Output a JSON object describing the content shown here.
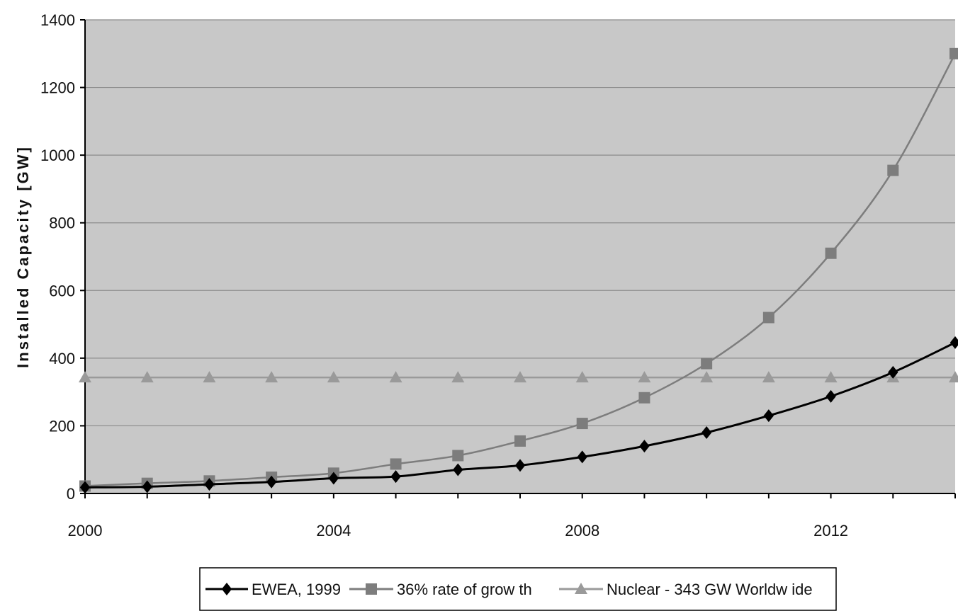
{
  "chart_data": {
    "type": "line",
    "title": "",
    "xlabel": "",
    "ylabel": "Installed Capacity [GW]",
    "x": [
      2000,
      2001,
      2002,
      2003,
      2004,
      2005,
      2006,
      2007,
      2008,
      2009,
      2010,
      2011,
      2012,
      2013,
      2014
    ],
    "xlim": [
      2000,
      2014
    ],
    "ylim": [
      0,
      1400
    ],
    "xticks": [
      2000,
      2004,
      2008,
      2012
    ],
    "xtick_labels": [
      "2000",
      "2004",
      "2008",
      "2012"
    ],
    "yticks": [
      0,
      200,
      400,
      600,
      800,
      1000,
      1200,
      1400
    ],
    "ytick_labels": [
      "0",
      "200",
      "400",
      "600",
      "800",
      "1000",
      "1200",
      "1400"
    ],
    "grid": "horizontal",
    "legend_position": "bottom",
    "background": "#c8c8c8",
    "series": [
      {
        "name": "EWEA, 1999",
        "color": "#000000",
        "marker": "diamond",
        "values": [
          18,
          20,
          27,
          34,
          45,
          50,
          70,
          83,
          108,
          140,
          180,
          230,
          287,
          358,
          446
        ]
      },
      {
        "name": "36% rate of grow th",
        "color": "#7d7d7d",
        "marker": "square",
        "values": [
          22,
          30,
          37,
          48,
          60,
          87,
          112,
          155,
          207,
          283,
          384,
          520,
          710,
          955,
          1300
        ]
      },
      {
        "name": "Nuclear - 343 GW Worldw ide",
        "color": "#9a9a9a",
        "marker": "triangle",
        "values": [
          343,
          343,
          343,
          343,
          343,
          343,
          343,
          343,
          343,
          343,
          343,
          343,
          343,
          343,
          343
        ]
      }
    ]
  }
}
